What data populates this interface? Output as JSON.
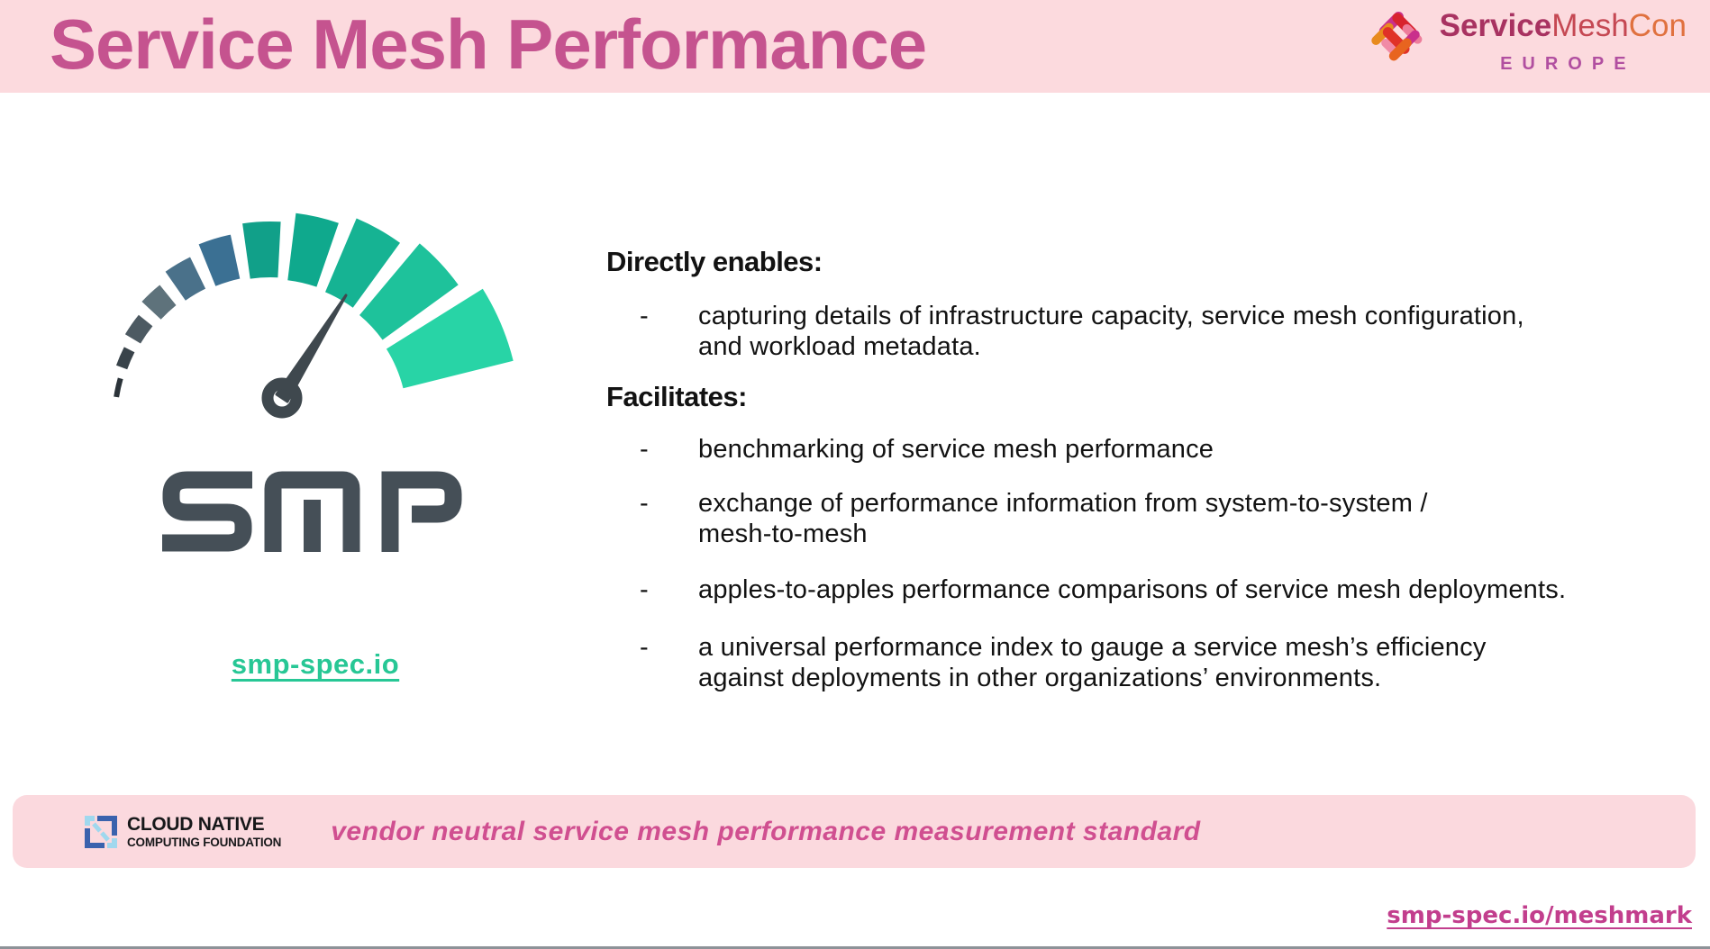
{
  "header": {
    "title": "Service Mesh Performance",
    "conference": {
      "part1": "Service",
      "part2": "Mesh",
      "part3": "Con",
      "region": "EUROPE",
      "part1_color": "#a83261",
      "part2_color": "#c54853",
      "part3_color": "#e0713f",
      "region_color": "#b14fa0"
    }
  },
  "logo": {
    "letters": "SMP",
    "link": "smp-spec.io",
    "letter_color": "#454f57",
    "needle_color": "#3f484e",
    "gauge_segments": [
      {
        "a1": 171,
        "a2": 164,
        "ri": 170,
        "ro": 176,
        "color": "#2b3339"
      },
      {
        "a1": 160,
        "a2": 153,
        "ri": 169,
        "ro": 182,
        "color": "#39434a"
      },
      {
        "a1": 149,
        "a2": 141,
        "ri": 168,
        "ro": 188,
        "color": "#4d5a62"
      },
      {
        "a1": 137,
        "a2": 129,
        "ri": 166,
        "ro": 195,
        "color": "#5e727b"
      },
      {
        "a1": 125,
        "a2": 116,
        "ri": 164,
        "ro": 203,
        "color": "#4a718a"
      },
      {
        "a1": 112,
        "a2": 102,
        "ri": 162,
        "ro": 212,
        "color": "#3b7093"
      },
      {
        "a1": 98,
        "a2": 87,
        "ri": 160,
        "ro": 222,
        "color": "#11a089"
      },
      {
        "a1": 83,
        "a2": 71,
        "ri": 158,
        "ro": 233,
        "color": "#0fa98d"
      },
      {
        "a1": 67,
        "a2": 54,
        "ri": 156,
        "ro": 245,
        "color": "#16b393"
      },
      {
        "a1": 50,
        "a2": 36,
        "ri": 154,
        "ro": 258,
        "color": "#1ec29b"
      },
      {
        "a1": 32,
        "a2": 14,
        "ri": 152,
        "ro": 278,
        "color": "#28d4a6"
      }
    ]
  },
  "content": {
    "bullet_marker": "-",
    "sections": [
      {
        "heading": "Directly enables:",
        "bullets": [
          {
            "text": "capturing details of infrastructure capacity, service mesh configuration,\nand workload metadata."
          }
        ]
      },
      {
        "heading": "Facilitates:",
        "bullets": [
          {
            "text": "benchmarking of service mesh performance"
          },
          {
            "text": "exchange of performance information from system-to-system /\nmesh-to-mesh"
          },
          {
            "text": "apples-to-apples performance comparisons of service mesh deployments."
          },
          {
            "text": "a universal performance index to gauge a service mesh’s efficiency\nagainst deployments in other organizations’ environments."
          }
        ]
      }
    ]
  },
  "footer": {
    "cncf": {
      "line1": "CLOUD NATIVE",
      "line2": "COMPUTING FOUNDATION",
      "icon_blue": "#3a62ad",
      "icon_light_blue": "#a0d8ee"
    },
    "tagline": "vendor neutral service mesh performance measurement standard",
    "link": "smp-spec.io/meshmark"
  },
  "colors": {
    "header_bg": "#fcdade",
    "banner_bg": "#fbd9de",
    "title_pink": "#c5538f",
    "tagline_pink": "#d04f90",
    "link_teal": "#27c795",
    "link_pink": "#c23e8d",
    "body_text": "#121212"
  }
}
